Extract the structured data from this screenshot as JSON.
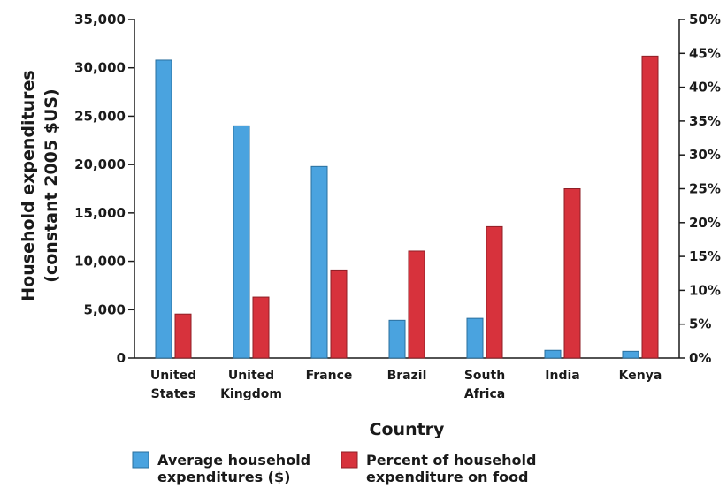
{
  "chart_data": {
    "type": "bar",
    "categories": [
      [
        "United",
        "States"
      ],
      [
        "United",
        "Kingdom"
      ],
      [
        "France"
      ],
      [
        "Brazil"
      ],
      [
        "South",
        "Africa"
      ],
      [
        "India"
      ],
      [
        "Kenya"
      ]
    ],
    "series": [
      {
        "name": [
          "Average household",
          "expenditures ($)"
        ],
        "axis": "left",
        "color": "#4aa3df",
        "values": [
          30800,
          24000,
          19800,
          3900,
          4100,
          800,
          700
        ]
      },
      {
        "name": [
          "Percent of household",
          "expenditure on food"
        ],
        "axis": "right",
        "color": "#d7323c",
        "values": [
          6.5,
          9.0,
          13.0,
          15.8,
          19.4,
          25.0,
          44.6
        ]
      }
    ],
    "xlabel": "Country",
    "ylabel": [
      "Household expenditures",
      "(constant 2005 $US)"
    ],
    "ylim": [
      0,
      35000
    ],
    "y_ticks": [
      "0",
      "5,000",
      "10,000",
      "15,000",
      "20,000",
      "25,000",
      "30,000",
      "35,000"
    ],
    "y2lim": [
      0,
      50
    ],
    "y2_ticks": [
      "0%",
      "5%",
      "10%",
      "15%",
      "20%",
      "25%",
      "30%",
      "35%",
      "40%",
      "45%",
      "50%"
    ],
    "grid": false,
    "legend_position": "bottom"
  }
}
